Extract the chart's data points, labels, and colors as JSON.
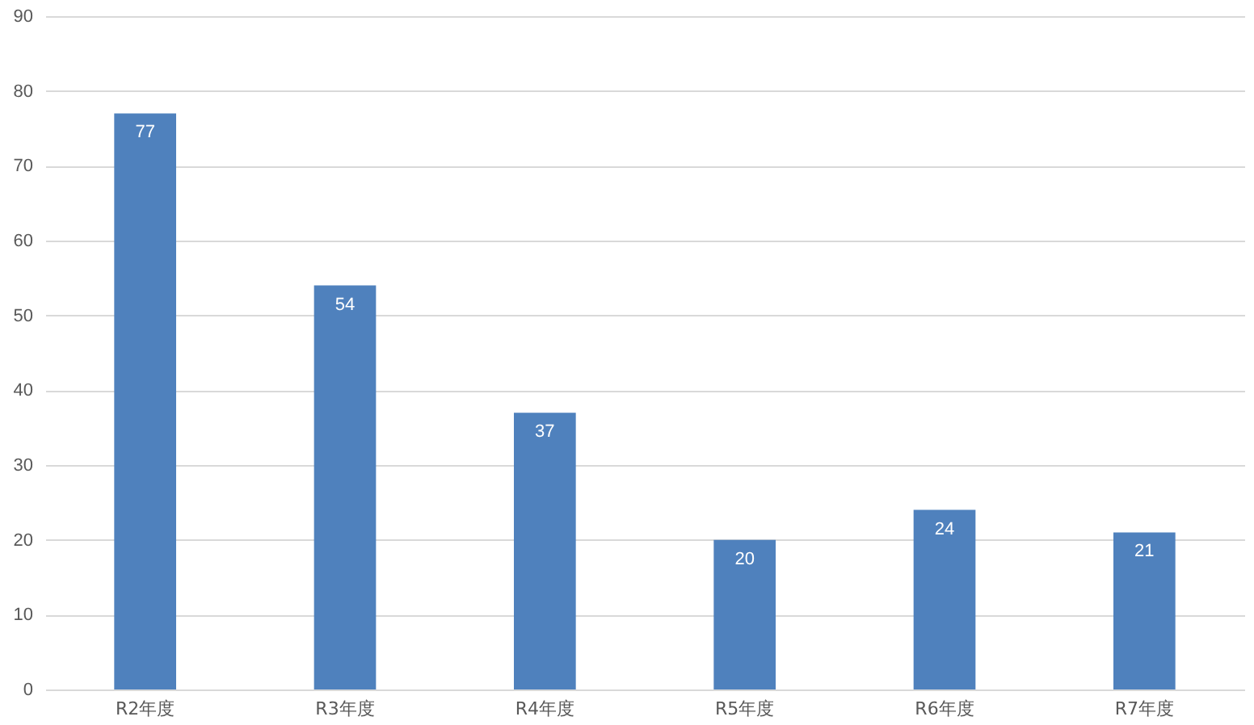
{
  "chart_data": {
    "type": "bar",
    "categories": [
      "R2年度",
      "R3年度",
      "R4年度",
      "R5年度",
      "R6年度",
      "R7年度"
    ],
    "values": [
      77,
      54,
      37,
      20,
      24,
      21
    ],
    "color": "#4f81bd",
    "ylim": [
      0,
      90
    ],
    "yticks": [
      0,
      10,
      20,
      30,
      40,
      50,
      60,
      70,
      80,
      90
    ],
    "grid": "y",
    "data_labels": true
  }
}
